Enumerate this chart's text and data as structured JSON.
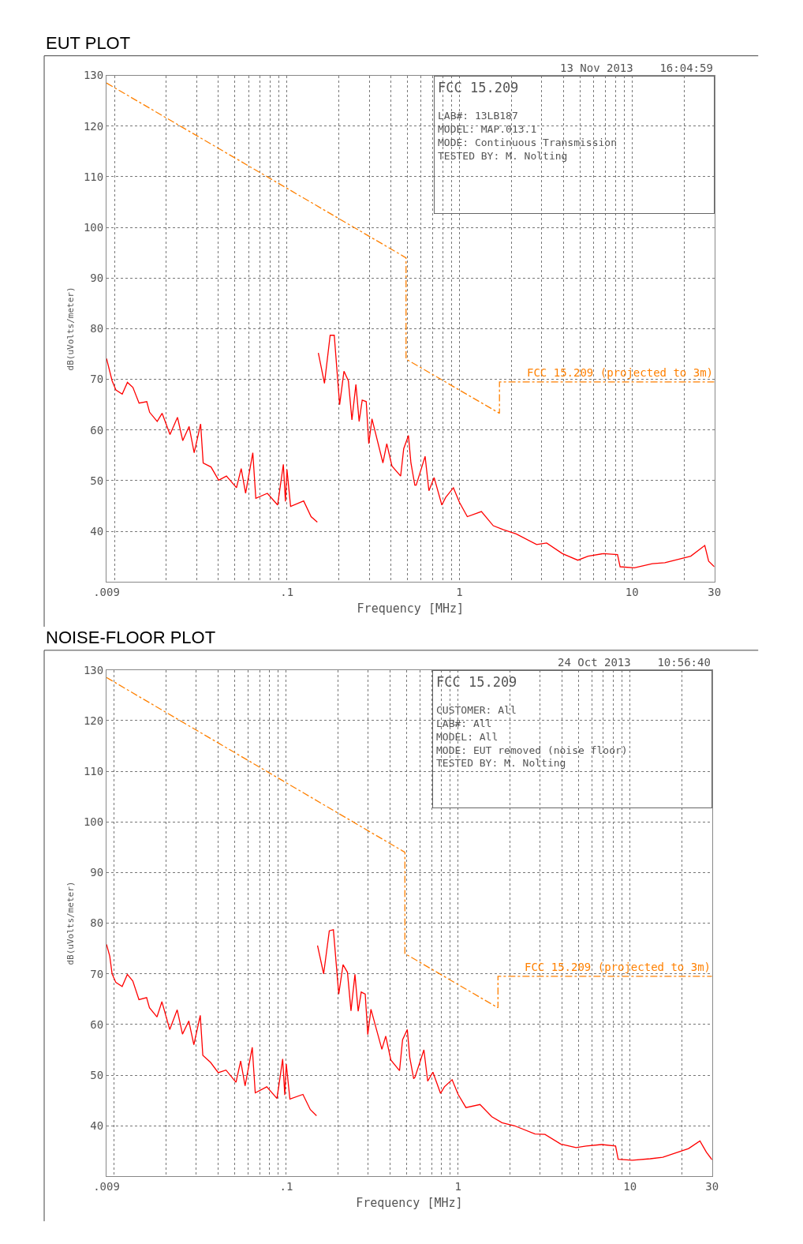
{
  "chart_data": [
    {
      "type": "line",
      "title": "EUT PLOT",
      "xlabel": "Frequency [MHz]",
      "ylabel": "dB(uVolts/meter)",
      "annotations": [
        "13 Nov 2013    16:04:59",
        "FCC 15.209",
        "LAB#: 13LB187",
        "MODEL: MAP.013.1",
        "MODE: Continuous Transmission",
        "TESTED BY: M. Nolting"
      ],
      "log": "x",
      "xlim": [
        0.009,
        30
      ],
      "ylim": [
        30,
        130
      ],
      "xticks": [
        {
          "value": 0.009,
          "label": ".009"
        },
        {
          "value": 0.01,
          "label": null
        },
        {
          "value": 0.02,
          "label": null
        },
        {
          "value": 0.03,
          "label": null
        },
        {
          "value": 0.04,
          "label": null
        },
        {
          "value": 0.05,
          "label": null
        },
        {
          "value": 0.06,
          "label": null
        },
        {
          "value": 0.07,
          "label": null
        },
        {
          "value": 0.08,
          "label": null
        },
        {
          "value": 0.09,
          "label": null
        },
        {
          "value": 0.1,
          "label": ".1"
        },
        {
          "value": 0.2,
          "label": null
        },
        {
          "value": 0.3,
          "label": null
        },
        {
          "value": 0.4,
          "label": null
        },
        {
          "value": 0.5,
          "label": null
        },
        {
          "value": 0.6,
          "label": null
        },
        {
          "value": 0.7,
          "label": null
        },
        {
          "value": 0.8,
          "label": null
        },
        {
          "value": 0.9,
          "label": null
        },
        {
          "value": 1,
          "label": "1"
        },
        {
          "value": 2,
          "label": null
        },
        {
          "value": 3,
          "label": null
        },
        {
          "value": 4,
          "label": null
        },
        {
          "value": 5,
          "label": null
        },
        {
          "value": 6,
          "label": null
        },
        {
          "value": 7,
          "label": null
        },
        {
          "value": 8,
          "label": null
        },
        {
          "value": 9,
          "label": null
        },
        {
          "value": 10,
          "label": "10"
        },
        {
          "value": 20,
          "label": null
        },
        {
          "value": 30,
          "label": "30"
        }
      ],
      "yticks": [
        40,
        50,
        60,
        70,
        80,
        90,
        100,
        110,
        120,
        130
      ],
      "grid": true,
      "legend": false,
      "marker": "none",
      "series": [
        {
          "color": "#ff0000",
          "line_style": "solid",
          "x": [
            0.009,
            0.0097,
            0.0102,
            0.0111,
            0.0119,
            0.0128,
            0.0139,
            0.0154,
            0.016,
            0.0177,
            0.0189,
            0.021,
            0.0232,
            0.0249,
            0.0271,
            0.029,
            0.0316,
            0.0327,
            0.0363,
            0.0402,
            0.0446,
            0.051,
            0.0543,
            0.0576,
            0.0634,
            0.066,
            0.077,
            0.0883,
            0.0953,
            0.098,
            0.1,
            0.105,
            0.125,
            0.138,
            0.15,
            0.151,
            0.152,
            0.165,
            0.178,
            0.188,
            0.202,
            0.214,
            0.227,
            0.238,
            0.251,
            0.262,
            0.273,
            0.288,
            0.298,
            0.311,
            0.36,
            0.379,
            0.406,
            0.456,
            0.475,
            0.506,
            0.523,
            0.551,
            0.561,
            0.632,
            0.665,
            0.713,
            0.79,
            0.832,
            0.922,
            1.0,
            1.11,
            1.34,
            1.57,
            1.8,
            2.13,
            2.8,
            3.2,
            3.95,
            4.85,
            5.56,
            6.83,
            8.24,
            8.53,
            10.3,
            13.1,
            15.5,
            21.9,
            26.4,
            27.8,
            30
          ],
          "values": [
            74.1,
            69.7,
            67.9,
            67.1,
            69.4,
            68.4,
            65.3,
            65.6,
            63.5,
            61.7,
            63.3,
            59.1,
            62.5,
            57.9,
            60.7,
            55.5,
            61.2,
            53.5,
            52.7,
            50.1,
            50.9,
            48.6,
            52.4,
            47.5,
            55.5,
            46.5,
            47.5,
            45.2,
            53.2,
            45.9,
            52.2,
            44.9,
            46.0,
            42.9,
            41.8,
            null,
            75.2,
            69.2,
            78.7,
            78.7,
            65.0,
            71.6,
            69.7,
            62.0,
            69.0,
            61.7,
            65.9,
            65.6,
            57.3,
            62.2,
            53.5,
            57.3,
            52.9,
            50.9,
            56.3,
            58.9,
            53.5,
            49.1,
            49.1,
            54.8,
            48.0,
            50.6,
            45.2,
            46.7,
            48.6,
            45.7,
            42.9,
            43.9,
            41.1,
            40.3,
            39.5,
            37.4,
            37.7,
            35.6,
            34.3,
            35.1,
            35.6,
            35.4,
            33.0,
            32.8,
            33.6,
            33.8,
            35.1,
            37.2,
            34.1,
            33.0
          ]
        },
        {
          "name": "FCC 15.209 (projected to 3m)",
          "color": "#ff8000",
          "line_style": "dashed",
          "x": [
            0.009,
            0.49,
            0.49,
            1.705,
            1.705,
            30
          ],
          "values": [
            128.5,
            94.0,
            74.0,
            63.3,
            69.5,
            69.5
          ]
        }
      ]
    },
    {
      "type": "line",
      "title": "NOISE-FLOOR PLOT",
      "xlabel": "Frequency [MHz]",
      "ylabel": "dB(uVolts/meter)",
      "annotations": [
        "24 Oct 2013    10:56:40",
        "FCC 15.209",
        "CUSTOMER: All",
        "LAB#: All",
        "MODEL: All",
        "MODE: EUT removed (noise floor)",
        "TESTED BY: M. Nolting"
      ],
      "log": "x",
      "xlim": [
        0.009,
        30
      ],
      "ylim": [
        30,
        130
      ],
      "xticks": [
        {
          "value": 0.009,
          "label": ".009"
        },
        {
          "value": 0.01,
          "label": null
        },
        {
          "value": 0.02,
          "label": null
        },
        {
          "value": 0.03,
          "label": null
        },
        {
          "value": 0.04,
          "label": null
        },
        {
          "value": 0.05,
          "label": null
        },
        {
          "value": 0.06,
          "label": null
        },
        {
          "value": 0.07,
          "label": null
        },
        {
          "value": 0.08,
          "label": null
        },
        {
          "value": 0.09,
          "label": null
        },
        {
          "value": 0.1,
          "label": ".1"
        },
        {
          "value": 0.2,
          "label": null
        },
        {
          "value": 0.3,
          "label": null
        },
        {
          "value": 0.4,
          "label": null
        },
        {
          "value": 0.5,
          "label": null
        },
        {
          "value": 0.6,
          "label": null
        },
        {
          "value": 0.7,
          "label": null
        },
        {
          "value": 0.8,
          "label": null
        },
        {
          "value": 0.9,
          "label": null
        },
        {
          "value": 1,
          "label": "1"
        },
        {
          "value": 2,
          "label": null
        },
        {
          "value": 3,
          "label": null
        },
        {
          "value": 4,
          "label": null
        },
        {
          "value": 5,
          "label": null
        },
        {
          "value": 6,
          "label": null
        },
        {
          "value": 7,
          "label": null
        },
        {
          "value": 8,
          "label": null
        },
        {
          "value": 9,
          "label": null
        },
        {
          "value": 10,
          "label": "10"
        },
        {
          "value": 20,
          "label": null
        },
        {
          "value": 30,
          "label": "30"
        }
      ],
      "yticks": [
        40,
        50,
        60,
        70,
        80,
        90,
        100,
        110,
        120,
        130
      ],
      "grid": true,
      "legend": false,
      "marker": "none",
      "series": [
        {
          "color": "#ff0000",
          "line_style": "solid",
          "x": [
            0.009,
            0.0094,
            0.0097,
            0.0102,
            0.0111,
            0.0119,
            0.0128,
            0.0139,
            0.0154,
            0.016,
            0.0177,
            0.0189,
            0.021,
            0.0232,
            0.0249,
            0.0271,
            0.029,
            0.0316,
            0.0327,
            0.0363,
            0.0402,
            0.0446,
            0.051,
            0.0543,
            0.0576,
            0.0634,
            0.066,
            0.077,
            0.0883,
            0.0953,
            0.098,
            0.1,
            0.105,
            0.125,
            0.138,
            0.15,
            0.151,
            0.152,
            0.165,
            0.178,
            0.188,
            0.202,
            0.214,
            0.227,
            0.238,
            0.251,
            0.262,
            0.273,
            0.288,
            0.298,
            0.311,
            0.36,
            0.379,
            0.406,
            0.456,
            0.475,
            0.506,
            0.523,
            0.551,
            0.561,
            0.632,
            0.665,
            0.713,
            0.79,
            0.832,
            0.922,
            1.0,
            1.11,
            1.34,
            1.57,
            1.8,
            2.13,
            2.8,
            3.2,
            3.95,
            4.85,
            5.56,
            6.83,
            8.24,
            8.53,
            10.3,
            13.1,
            15.5,
            21.9,
            25.5,
            27.8,
            30
          ],
          "values": [
            75.8,
            73.5,
            70.0,
            68.3,
            67.5,
            69.9,
            68.6,
            64.9,
            65.3,
            63.3,
            61.5,
            64.5,
            59.0,
            62.9,
            58.1,
            60.7,
            56.0,
            61.8,
            53.9,
            52.5,
            50.5,
            51.0,
            48.6,
            52.8,
            47.9,
            55.5,
            46.5,
            47.7,
            45.4,
            53.2,
            46.1,
            52.2,
            45.3,
            46.2,
            43.2,
            42.0,
            null,
            75.6,
            70.0,
            78.5,
            78.7,
            66.0,
            71.8,
            70.3,
            62.7,
            69.9,
            62.6,
            66.4,
            66.0,
            58.0,
            63.0,
            55.1,
            57.7,
            53.0,
            50.9,
            57.0,
            59.0,
            53.5,
            49.3,
            49.6,
            55.0,
            48.8,
            50.6,
            46.4,
            47.7,
            49.1,
            46.2,
            43.6,
            44.2,
            41.8,
            40.6,
            40.0,
            38.4,
            38.3,
            36.4,
            35.7,
            36.0,
            36.3,
            36.0,
            33.4,
            33.2,
            33.5,
            33.8,
            35.5,
            37.0,
            34.8,
            33.3
          ]
        },
        {
          "name": "FCC 15.209 (projected to 3m)",
          "color": "#ff8000",
          "line_style": "dashed",
          "x": [
            0.009,
            0.49,
            0.49,
            1.705,
            1.705,
            30
          ],
          "values": [
            128.5,
            94.0,
            74.0,
            63.3,
            69.5,
            69.5
          ]
        }
      ]
    }
  ]
}
